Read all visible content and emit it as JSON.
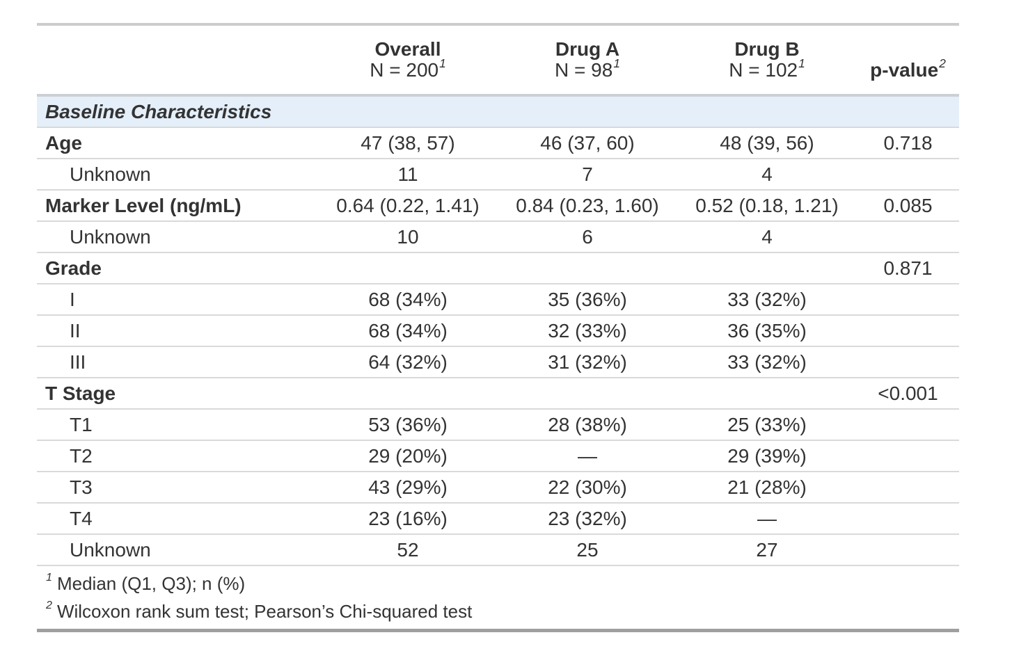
{
  "chart_data": {
    "type": "table",
    "group_label": "Baseline Characteristics",
    "columns": [
      {
        "label": "",
        "sublabel": "",
        "footnote_mark": ""
      },
      {
        "label": "Overall",
        "sublabel": "N = 200",
        "footnote_mark": "1"
      },
      {
        "label": "Drug A",
        "sublabel": "N = 98",
        "footnote_mark": "1"
      },
      {
        "label": "Drug B",
        "sublabel": "N = 102",
        "footnote_mark": "1"
      },
      {
        "label": "p-value",
        "sublabel": "",
        "footnote_mark": "2"
      }
    ],
    "rows": [
      {
        "label": "Age",
        "indent": false,
        "values": [
          "47 (38, 57)",
          "46 (37, 60)",
          "48 (39, 56)",
          "0.718"
        ]
      },
      {
        "label": "Unknown",
        "indent": true,
        "values": [
          "11",
          "7",
          "4",
          ""
        ]
      },
      {
        "label": "Marker Level (ng/mL)",
        "indent": false,
        "values": [
          "0.64 (0.22, 1.41)",
          "0.84 (0.23, 1.60)",
          "0.52 (0.18, 1.21)",
          "0.085"
        ]
      },
      {
        "label": "Unknown",
        "indent": true,
        "values": [
          "10",
          "6",
          "4",
          ""
        ]
      },
      {
        "label": "Grade",
        "indent": false,
        "values": [
          "",
          "",
          "",
          "0.871"
        ]
      },
      {
        "label": "I",
        "indent": true,
        "values": [
          "68 (34%)",
          "35 (36%)",
          "33 (32%)",
          ""
        ]
      },
      {
        "label": "II",
        "indent": true,
        "values": [
          "68 (34%)",
          "32 (33%)",
          "36 (35%)",
          ""
        ]
      },
      {
        "label": "III",
        "indent": true,
        "values": [
          "64 (32%)",
          "31 (32%)",
          "33 (32%)",
          ""
        ]
      },
      {
        "label": "T Stage",
        "indent": false,
        "values": [
          "",
          "",
          "",
          "<0.001"
        ]
      },
      {
        "label": "T1",
        "indent": true,
        "values": [
          "53 (36%)",
          "28 (38%)",
          "25 (33%)",
          ""
        ]
      },
      {
        "label": "T2",
        "indent": true,
        "values": [
          "29 (20%)",
          "—",
          "29 (39%)",
          ""
        ]
      },
      {
        "label": "T3",
        "indent": true,
        "values": [
          "43 (29%)",
          "22 (30%)",
          "21 (28%)",
          ""
        ]
      },
      {
        "label": "T4",
        "indent": true,
        "values": [
          "23 (16%)",
          "23 (32%)",
          "—",
          ""
        ]
      },
      {
        "label": "Unknown",
        "indent": true,
        "values": [
          "52",
          "25",
          "27",
          ""
        ]
      }
    ],
    "footnotes": [
      {
        "mark": "1",
        "text": "Median (Q1, Q3); n (%)"
      },
      {
        "mark": "2",
        "text": "Wilcoxon rank sum test; Pearson’s Chi-squared test"
      }
    ]
  },
  "colors": {
    "group_row_background": "#e4effa",
    "text": "#333333",
    "row_line": "#d9d9d9",
    "header_rule": "#ccd0d4",
    "table_top_border": "#cccccc",
    "table_bottom_border": "#9f9f9f"
  }
}
